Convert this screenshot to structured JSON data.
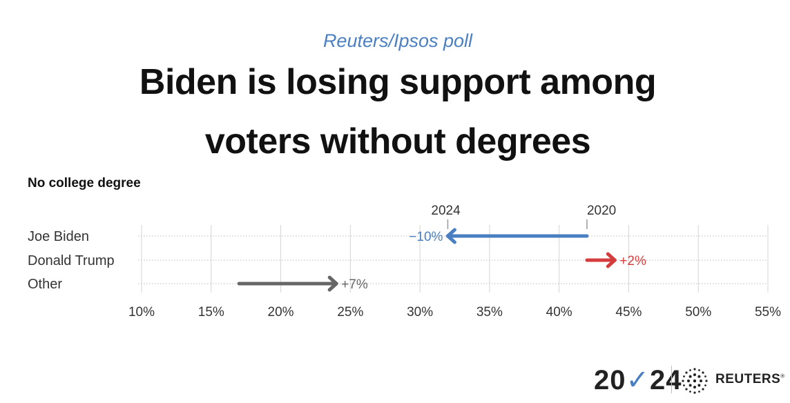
{
  "header": {
    "kicker": "Reuters/Ipsos poll",
    "title_line1": "Biden is losing support among",
    "title_line2": "voters without degrees"
  },
  "chart_data": {
    "type": "arrow-range",
    "subtitle": "No college degree",
    "x_ticks": [
      "10%",
      "15%",
      "20%",
      "25%",
      "30%",
      "35%",
      "40%",
      "45%",
      "50%",
      "55%"
    ],
    "xlim": [
      10,
      55
    ],
    "markers": [
      {
        "label": "2024",
        "value": 32
      },
      {
        "label": "2020",
        "value": 42
      }
    ],
    "series": [
      {
        "name": "Joe Biden",
        "from": 42,
        "to": 32,
        "change": "−10%",
        "color": "#4a7fc1"
      },
      {
        "name": "Donald Trump",
        "from": 42,
        "to": 44,
        "change": "+2%",
        "color": "#d43d3d"
      },
      {
        "name": "Other",
        "from": 17,
        "to": 24,
        "change": "+7%",
        "color": "#666666"
      }
    ],
    "grid": true
  },
  "footer": {
    "year_part1": "20",
    "year_part2": "24",
    "brand": "REUTERS",
    "brand_mark": "®"
  }
}
